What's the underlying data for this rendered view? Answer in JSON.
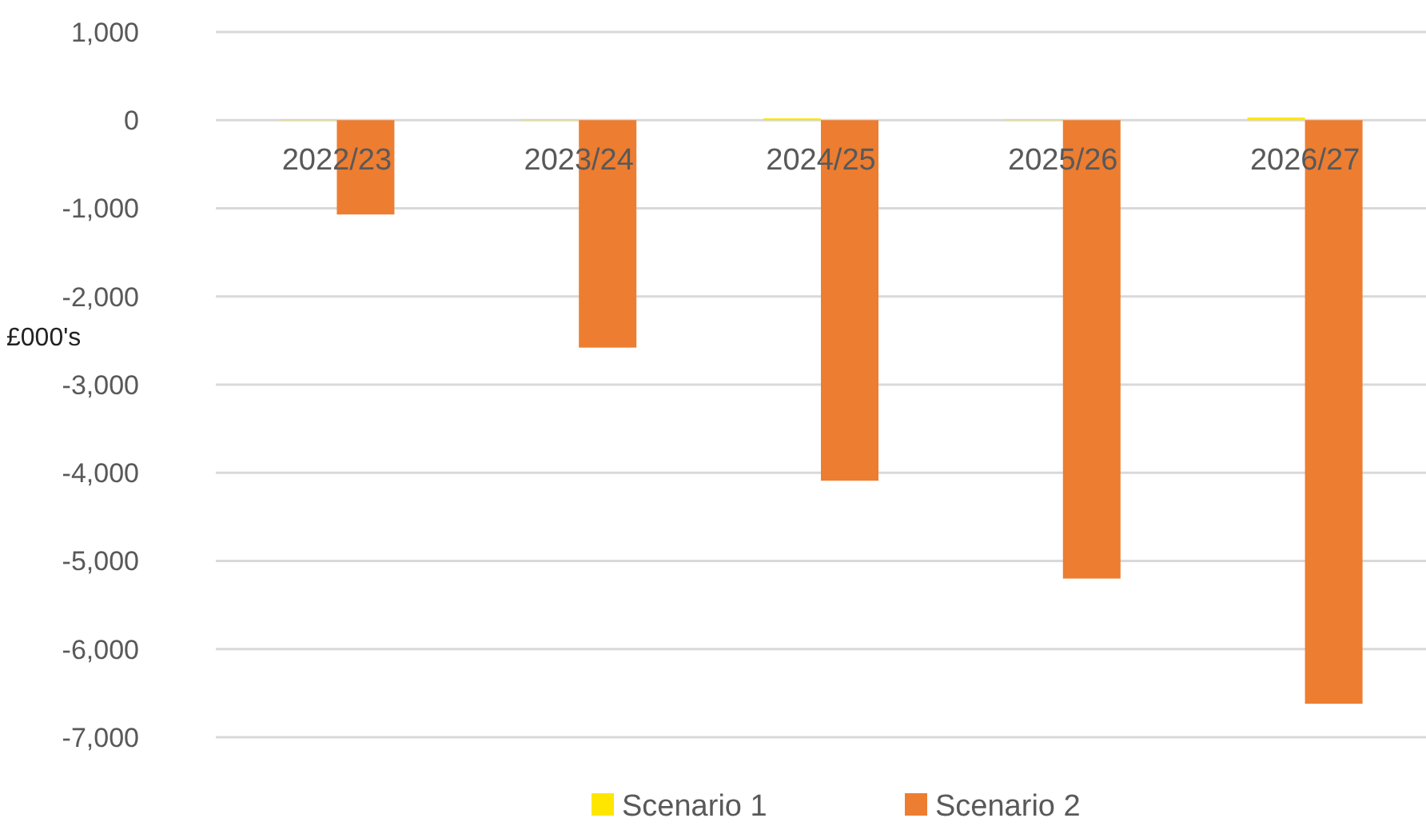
{
  "chart_data": {
    "type": "bar",
    "ylabel": "£000's",
    "categories": [
      "2022/23",
      "2023/24",
      "2024/25",
      "2025/26",
      "2026/27"
    ],
    "series": [
      {
        "name": "Scenario 1",
        "color": "#ffe600",
        "values": [
          10,
          10,
          20,
          10,
          30
        ]
      },
      {
        "name": "Scenario 2",
        "color": "#ed7d31",
        "values": [
          -1070,
          -2580,
          -4090,
          -5200,
          -6620
        ]
      }
    ],
    "ylim": [
      -7000,
      1000
    ],
    "yticks": [
      {
        "value": 1000,
        "label": "1,000"
      },
      0,
      {
        "value": -1000,
        "label": "-1,000"
      },
      {
        "value": -2000,
        "label": "-2,000"
      },
      {
        "value": -3000,
        "label": "-3,000"
      },
      {
        "value": -4000,
        "label": "-4,000"
      },
      {
        "value": -5000,
        "label": "-5,000"
      },
      {
        "value": -6000,
        "label": "-6,000"
      },
      {
        "value": -7000,
        "label": "-7,000"
      }
    ],
    "grid": "y",
    "legend": "bottom"
  }
}
